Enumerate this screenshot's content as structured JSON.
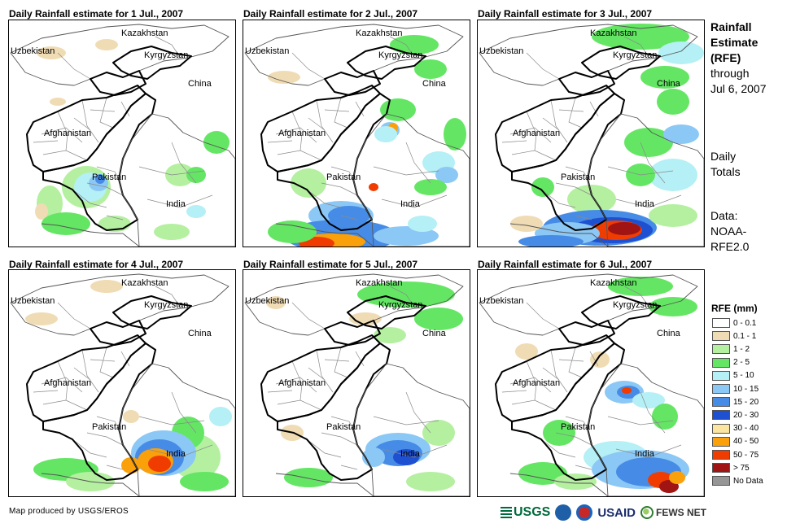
{
  "panels": [
    {
      "title": "Daily Rainfall estimate for 1 Jul., 2007"
    },
    {
      "title": "Daily Rainfall estimate for 2 Jul., 2007"
    },
    {
      "title": "Daily Rainfall estimate for 3 Jul., 2007"
    },
    {
      "title": "Daily Rainfall estimate for 4 Jul., 2007"
    },
    {
      "title": "Daily Rainfall estimate for 5 Jul., 2007"
    },
    {
      "title": "Daily Rainfall estimate for 6 Jul., 2007"
    }
  ],
  "map_labels": {
    "kazakhstan": "Kazakhstan",
    "uzbekistan": "Uzbekistan",
    "kyrgyzstan": "Kyrgyzstan",
    "china": "China",
    "afghanistan": "Afghanistan",
    "pakistan": "Pakistan",
    "india": "India"
  },
  "side": {
    "title_line1": "Rainfall",
    "title_line2": "Estimate",
    "title_line3": "(RFE)",
    "through": "through",
    "date": "Jul 6, 2007",
    "daily1": "Daily",
    "daily2": "Totals",
    "data1": "Data:",
    "data2": "NOAA-",
    "data3": "RFE2.0"
  },
  "legend": {
    "title": "RFE (mm)",
    "items": [
      {
        "label": "0 - 0.1",
        "color": "#ffffff"
      },
      {
        "label": "0.1 - 1",
        "color": "#f0dcb4"
      },
      {
        "label": "1 - 2",
        "color": "#b4f0a0"
      },
      {
        "label": "2 - 5",
        "color": "#64e664"
      },
      {
        "label": "5 - 10",
        "color": "#b4f0f5"
      },
      {
        "label": "10 - 15",
        "color": "#8cc8f5"
      },
      {
        "label": "15 - 20",
        "color": "#468ce6"
      },
      {
        "label": "20 - 30",
        "color": "#1e50d2"
      },
      {
        "label": "30 - 40",
        "color": "#fae6a0"
      },
      {
        "label": "40 - 50",
        "color": "#faa00a"
      },
      {
        "label": "50 - 75",
        "color": "#f03c00"
      },
      {
        "label": "> 75",
        "color": "#a01414"
      },
      {
        "label": "No Data",
        "color": "#969696"
      }
    ]
  },
  "credit": "Map produced by USGS/EROS",
  "logos": {
    "usgs": "USGS",
    "usaid": "USAID",
    "fews": "FEWS NET"
  }
}
